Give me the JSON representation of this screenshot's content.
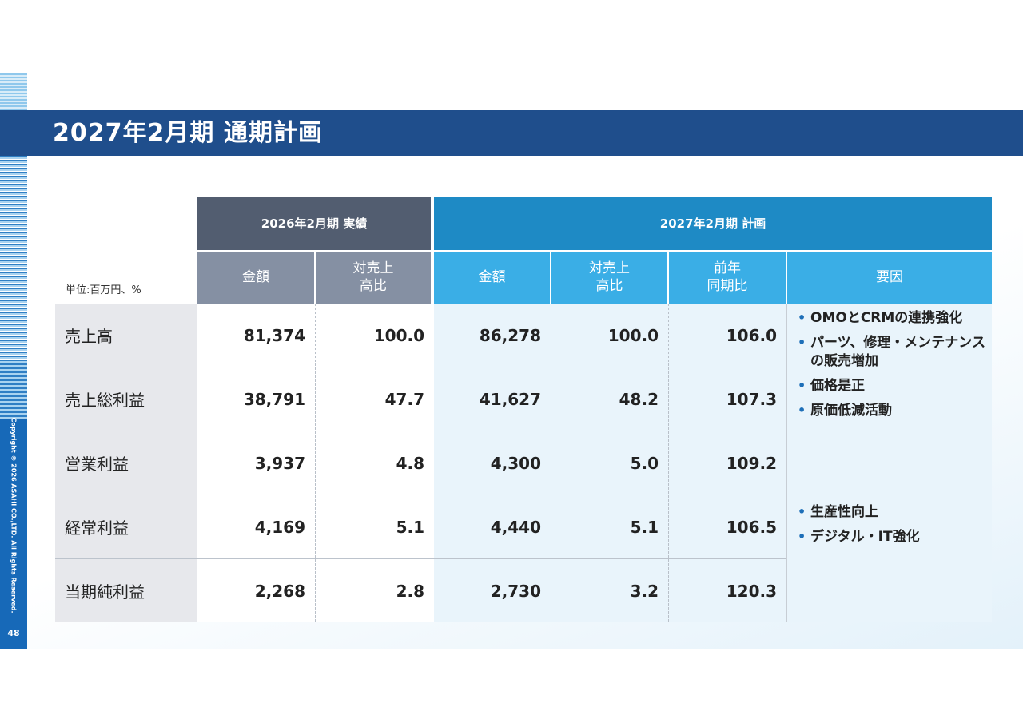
{
  "page": {
    "title": "2027年2月期 通期計画",
    "unit": "単位:百万円、%",
    "copyright": "Copyright © 2026 ASAHI CO.,LTD. All Rights Reserved.",
    "page_number": "48"
  },
  "table": {
    "group_headers": {
      "actual": "2026年2月期 実績",
      "plan": "2027年2月期 計画"
    },
    "column_headers": {
      "amount_actual": "金額",
      "ratio_actual": "対売上\n高比",
      "amount_plan": "金額",
      "ratio_plan": "対売上\n高比",
      "yoy": "前年\n同期比",
      "factor": "要因"
    },
    "rows": [
      {
        "label": "売上高",
        "actual_amount": "81,374",
        "actual_ratio": "100.0",
        "plan_amount": "86,278",
        "plan_ratio": "100.0",
        "yoy": "106.0"
      },
      {
        "label": "売上総利益",
        "actual_amount": "38,791",
        "actual_ratio": "47.7",
        "plan_amount": "41,627",
        "plan_ratio": "48.2",
        "yoy": "107.3"
      },
      {
        "label": "営業利益",
        "actual_amount": "3,937",
        "actual_ratio": "4.8",
        "plan_amount": "4,300",
        "plan_ratio": "5.0",
        "yoy": "109.2"
      },
      {
        "label": "経常利益",
        "actual_amount": "4,169",
        "actual_ratio": "5.1",
        "plan_amount": "4,440",
        "plan_ratio": "5.1",
        "yoy": "106.5"
      },
      {
        "label": "当期純利益",
        "actual_amount": "2,268",
        "actual_ratio": "2.8",
        "plan_amount": "2,730",
        "plan_ratio": "3.2",
        "yoy": "120.3"
      }
    ],
    "factors": {
      "group1": [
        "OMOとCRMの連携強化",
        "パーツ、修理・メンテナンスの販売増加",
        "価格是正",
        "原価低減活動"
      ],
      "group2": [
        "生産性向上",
        "デジタル・IT強化"
      ]
    }
  },
  "colors": {
    "title_bar": "#1f4e8c",
    "actual_header_dark": "#525d70",
    "actual_header_light": "#8590a3",
    "plan_header_dark": "#1e8ac5",
    "plan_header_light": "#3aaee6",
    "sidebar_blue": "#1769b8"
  }
}
